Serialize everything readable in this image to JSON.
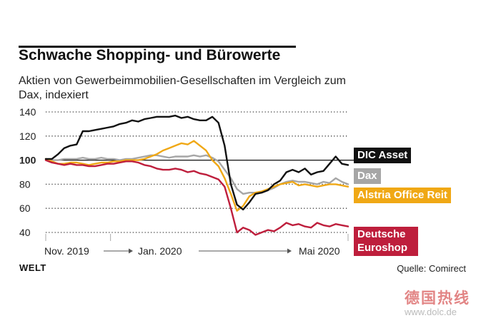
{
  "title": "Schwache Shopping- und Bürowerte",
  "subtitle": "Aktien von Gewerbeimmobilien-Gesellschaften im Vergleich zum Dax, indexiert",
  "source": "Quelle: Comirect",
  "logo": "WELT",
  "watermark": "德国热线",
  "watermark_url": "www.dolc.de",
  "colors": {
    "dic": "#111111",
    "dax": "#a6a6a6",
    "alstria": "#f0a815",
    "deutsche": "#be1e3c",
    "grid": "#333333"
  },
  "chart_data": {
    "type": "line",
    "title": "Schwache Shopping- und Bürowerte",
    "xlabel": "",
    "ylabel": "",
    "ylim": [
      35,
      145
    ],
    "yticks": [
      40,
      60,
      80,
      100,
      120,
      140
    ],
    "x_tick_labels": [
      "Nov. 2019",
      "Jan. 2020",
      "Mai 2020"
    ],
    "x_tick_positions": [
      0,
      10.5,
      49
    ],
    "xlim": [
      0,
      49
    ],
    "x": [
      0,
      1,
      2,
      3,
      4,
      5,
      6,
      7,
      8,
      9,
      10,
      11,
      12,
      13,
      14,
      15,
      16,
      17,
      18,
      19,
      20,
      21,
      22,
      23,
      24,
      25,
      26,
      27,
      28,
      29,
      30,
      31,
      32,
      33,
      34,
      35,
      36,
      37,
      38,
      39,
      40,
      41,
      42,
      43,
      44,
      45,
      46,
      47,
      48,
      49
    ],
    "grid": true,
    "series": [
      {
        "name": "DIC Asset",
        "color_key": "dic",
        "values": [
          101,
          101,
          105,
          110,
          112,
          113,
          124,
          124,
          125,
          126,
          127,
          128,
          130,
          131,
          133,
          132,
          134,
          135,
          136,
          136,
          136,
          137,
          135,
          136,
          134,
          133,
          133,
          136,
          131,
          112,
          80,
          63,
          59,
          65,
          72,
          73,
          75,
          80,
          83,
          90,
          92,
          90,
          93,
          88,
          90,
          91,
          97,
          103,
          97,
          96
        ]
      },
      {
        "name": "Dax",
        "color_key": "dax",
        "values": [
          101,
          100,
          100,
          101,
          101,
          101,
          102,
          101,
          101,
          102,
          101,
          101,
          100,
          101,
          101,
          102,
          103,
          104,
          104,
          103,
          102,
          103,
          103,
          103,
          104,
          103,
          104,
          102,
          99,
          92,
          85,
          76,
          72,
          73,
          73,
          74,
          75,
          77,
          80,
          82,
          83,
          82,
          82,
          81,
          80,
          82,
          81,
          85,
          82,
          80
        ]
      },
      {
        "name": "Alstria Office Reit",
        "color_key": "alstria",
        "values": [
          101,
          99,
          97,
          97,
          98,
          98,
          97,
          96,
          97,
          98,
          98,
          99,
          99,
          100,
          100,
          100,
          101,
          103,
          105,
          108,
          110,
          112,
          114,
          113,
          116,
          112,
          108,
          100,
          95,
          85,
          72,
          58,
          62,
          70,
          73,
          74,
          76,
          78,
          80,
          81,
          82,
          79,
          80,
          79,
          78,
          79,
          80,
          80,
          79,
          78
        ]
      },
      {
        "name": "Deutsche Euroshop",
        "color_key": "deutsche",
        "values": [
          100,
          98,
          97,
          96,
          97,
          96,
          96,
          95,
          95,
          96,
          97,
          97,
          98,
          99,
          99,
          98,
          96,
          95,
          93,
          92,
          92,
          93,
          92,
          90,
          91,
          89,
          88,
          86,
          84,
          78,
          60,
          40,
          44,
          42,
          38,
          40,
          42,
          41,
          44,
          48,
          46,
          47,
          45,
          44,
          48,
          46,
          45,
          47,
          46,
          45
        ]
      }
    ],
    "legend": [
      {
        "label": "DIC Asset",
        "color_key": "dic",
        "text_color": "#ffffff"
      },
      {
        "label": "Dax",
        "color_key": "dax",
        "text_color": "#ffffff"
      },
      {
        "label": "Alstria Office Reit",
        "color_key": "alstria",
        "text_color": "#ffffff"
      },
      {
        "label": "Deutsche Euroshop",
        "color_key": "deutsche",
        "text_color": "#ffffff"
      }
    ],
    "legend_placement": "right"
  }
}
